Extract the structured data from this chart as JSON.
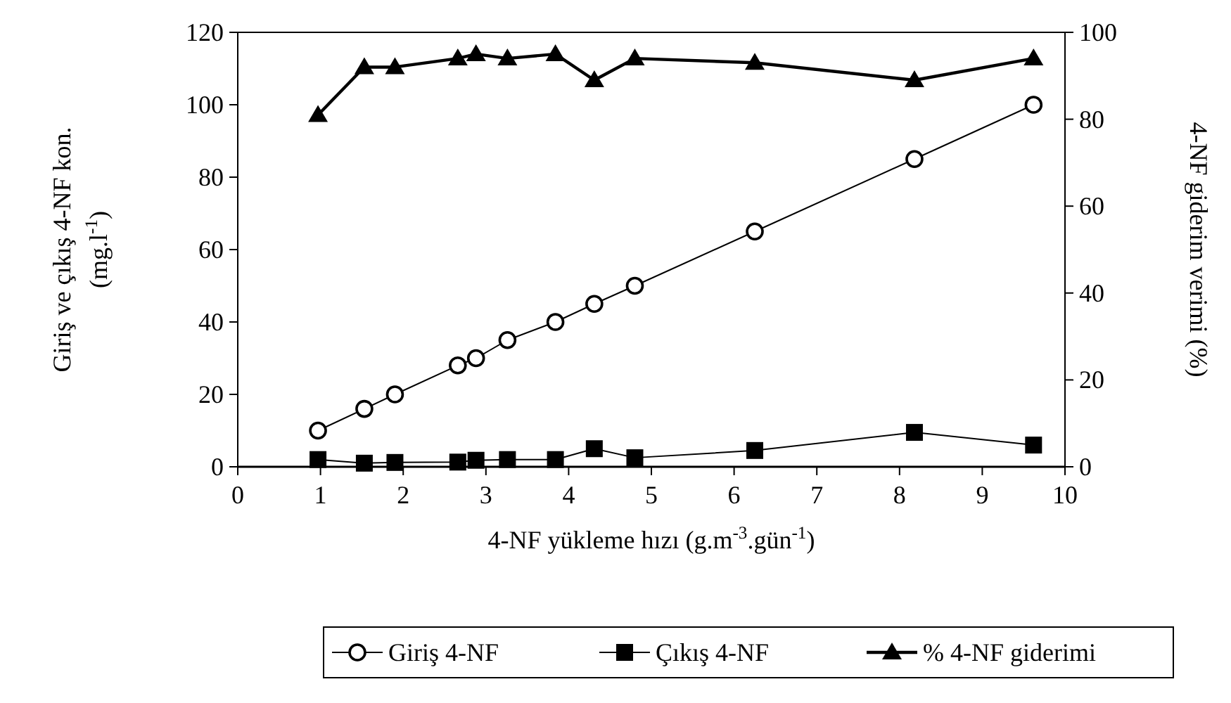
{
  "chart_data": {
    "type": "line",
    "x": [
      0.97,
      1.53,
      1.9,
      2.66,
      2.88,
      3.26,
      3.84,
      4.31,
      4.8,
      6.25,
      8.18,
      9.62
    ],
    "series": [
      {
        "name": "Giriş 4-NF",
        "color": "#000000",
        "marker": "circle",
        "values": [
          10,
          16,
          20,
          28,
          30,
          35,
          40,
          45,
          50,
          65,
          85,
          100
        ]
      },
      {
        "name": "Çıkış 4-NF",
        "color": "#000000",
        "marker": "square",
        "values": [
          2,
          1,
          1.2,
          1.3,
          1.8,
          2,
          2,
          5,
          2.5,
          4.5,
          9.5,
          6
        ]
      },
      {
        "name": "% 4-NF giderimi",
        "color": "#000000",
        "marker": "triangle",
        "axis": "y2",
        "values": [
          81,
          92,
          92,
          94,
          95,
          94,
          95,
          89,
          94,
          93,
          89,
          94
        ]
      }
    ],
    "xlabel": "4-NF yükleme hızı (g.m$^{-3}$.gün$^{-1}$)",
    "ylabel": "Giriş ve çıkış 4-NF kon. (mg.l$^{-1}$)",
    "y2label": "4-NF giderim verimi (%)",
    "xlim": [
      0,
      10
    ],
    "xticks": [
      0,
      1,
      2,
      3,
      4,
      5,
      6,
      7,
      8,
      9,
      10
    ],
    "ylim": [
      0,
      120
    ],
    "yticks": [
      0,
      20,
      40,
      60,
      80,
      100,
      120
    ],
    "y2lim": [
      0,
      100
    ],
    "y2ticks": [
      0,
      20,
      40,
      60,
      80,
      100
    ],
    "grid": false,
    "legend": "bottom"
  }
}
